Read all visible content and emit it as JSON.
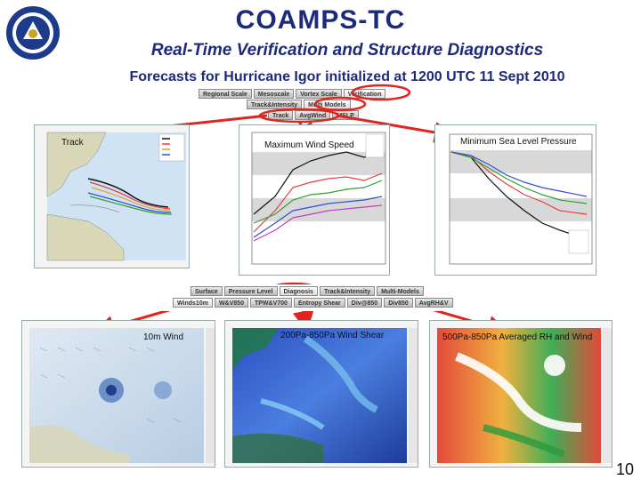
{
  "header": {
    "title": "COAMPS-TC",
    "subtitle": "Real-Time Verification and Structure Diagnostics",
    "forecast_caption": "Forecasts for Hurricane Igor initialized at 1200 UTC 11 Sept 2010"
  },
  "top_nav": {
    "row1": [
      "Regional Scale",
      "Mesoscale",
      "Vortex Scale",
      "Verification"
    ],
    "row2": [
      "Track&Intensity",
      "Multi Models"
    ],
    "row3": [
      "Track",
      "AvgWind",
      "MSLP"
    ]
  },
  "bottom_nav": {
    "row1": [
      "Surface",
      "Pressure Level",
      "Diagnosis",
      "Track&Intensity",
      "Multi-Models"
    ],
    "row2": [
      "Winds10m",
      "W&V850",
      "TPW&V700",
      "Entropy Shear",
      "Div@850",
      "Div850",
      "AvgRH&V"
    ]
  },
  "panels": {
    "track": {
      "label": "Track"
    },
    "max_wind": {
      "label": "Maximum Wind Speed"
    },
    "mslp": {
      "label": "Minimum Sea Level Pressure"
    },
    "wind10m": {
      "label": "10m Wind"
    },
    "shear": {
      "label": "200Pa-850Pa Wind Shear"
    },
    "rh": {
      "label": "500Pa-850Pa Averaged RH and Wind"
    }
  },
  "colors": {
    "title": "#1d2a7a",
    "arrow": "#e0241e",
    "highlight": "#e0241e"
  },
  "page_number": "10"
}
